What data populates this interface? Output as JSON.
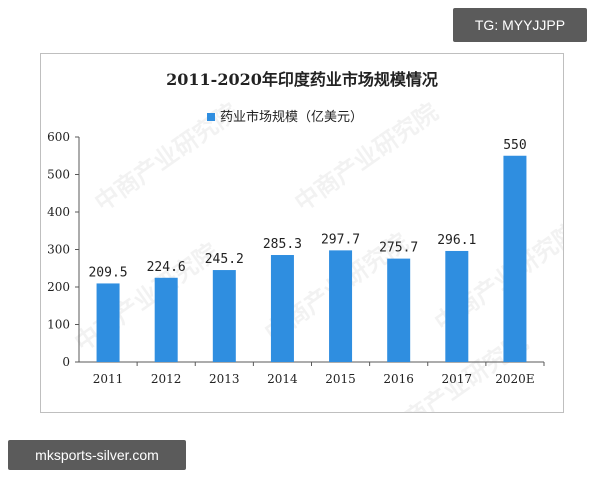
{
  "badges": {
    "top_right": "TG: MYYJJPP",
    "bottom_left": "mksports-silver.com"
  },
  "watermark": "中商产业研究院",
  "colors": {
    "bar": "#2f8ee0",
    "axis": "#595959",
    "text": "#222222"
  },
  "chart_data": {
    "type": "bar",
    "title": "2011-2020年印度药业市场规模情况",
    "xlabel": "",
    "ylabel": "",
    "categories": [
      "2011",
      "2012",
      "2013",
      "2014",
      "2015",
      "2016",
      "2017",
      "2020E"
    ],
    "series": [
      {
        "name": "药业市场规模（亿美元）",
        "values": [
          209.5,
          224.6,
          245.2,
          285.3,
          297.7,
          275.7,
          296.1,
          550
        ],
        "labels": [
          "209.5",
          "224.6",
          "245.2",
          "285.3",
          "297.7",
          "275.7",
          "296.1",
          "550"
        ]
      }
    ],
    "ylim": [
      0,
      600
    ],
    "yticks": [
      0,
      100,
      200,
      300,
      400,
      500,
      600
    ],
    "grid": false,
    "legend": "top-left"
  }
}
